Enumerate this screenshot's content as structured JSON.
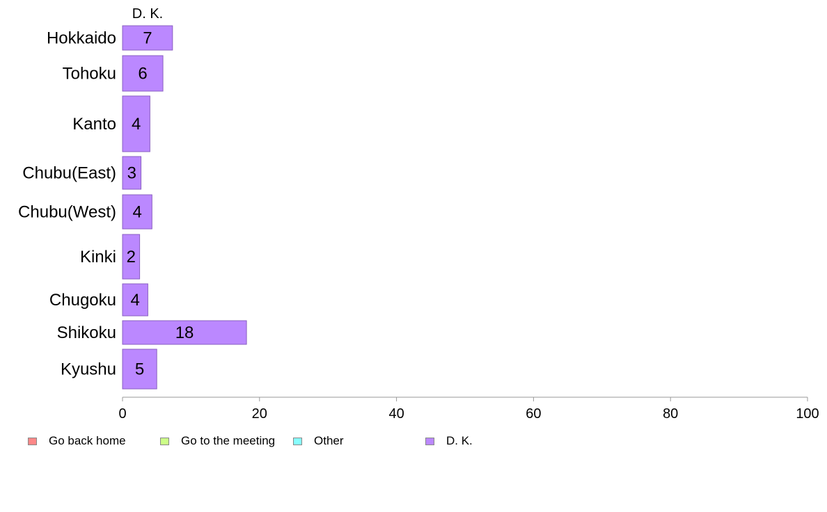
{
  "chart_data": {
    "type": "bar",
    "orientation": "horizontal",
    "title": "",
    "series_title": "D. K.",
    "categories": [
      "Hokkaido",
      "Tohoku",
      "Kanto",
      "Chubu(East)",
      "Chubu(West)",
      "Kinki",
      "Chugoku",
      "Shikoku",
      "Kyushu"
    ],
    "series": [
      {
        "name": "D. K.",
        "color": "#bb88ff",
        "values": [
          7.3,
          5.9,
          4,
          2.7,
          4.3,
          2.5,
          3.7,
          18.1,
          5
        ]
      }
    ],
    "data_labels": [
      "7",
      "6",
      "4",
      "3",
      "4",
      "2",
      "4",
      "18",
      "5"
    ],
    "xlim": [
      0,
      100
    ],
    "xticks": [
      "0",
      "20",
      "40",
      "60",
      "80",
      "100"
    ],
    "grid": false,
    "legend_position": "bottom",
    "legend": [
      {
        "label": "Go back home",
        "color": "#ff8888"
      },
      {
        "label": "Go to the meeting",
        "color": "#ccff88"
      },
      {
        "label": "Other",
        "color": "#88ffff"
      },
      {
        "label": "D. K.",
        "color": "#bb88ff"
      }
    ]
  }
}
